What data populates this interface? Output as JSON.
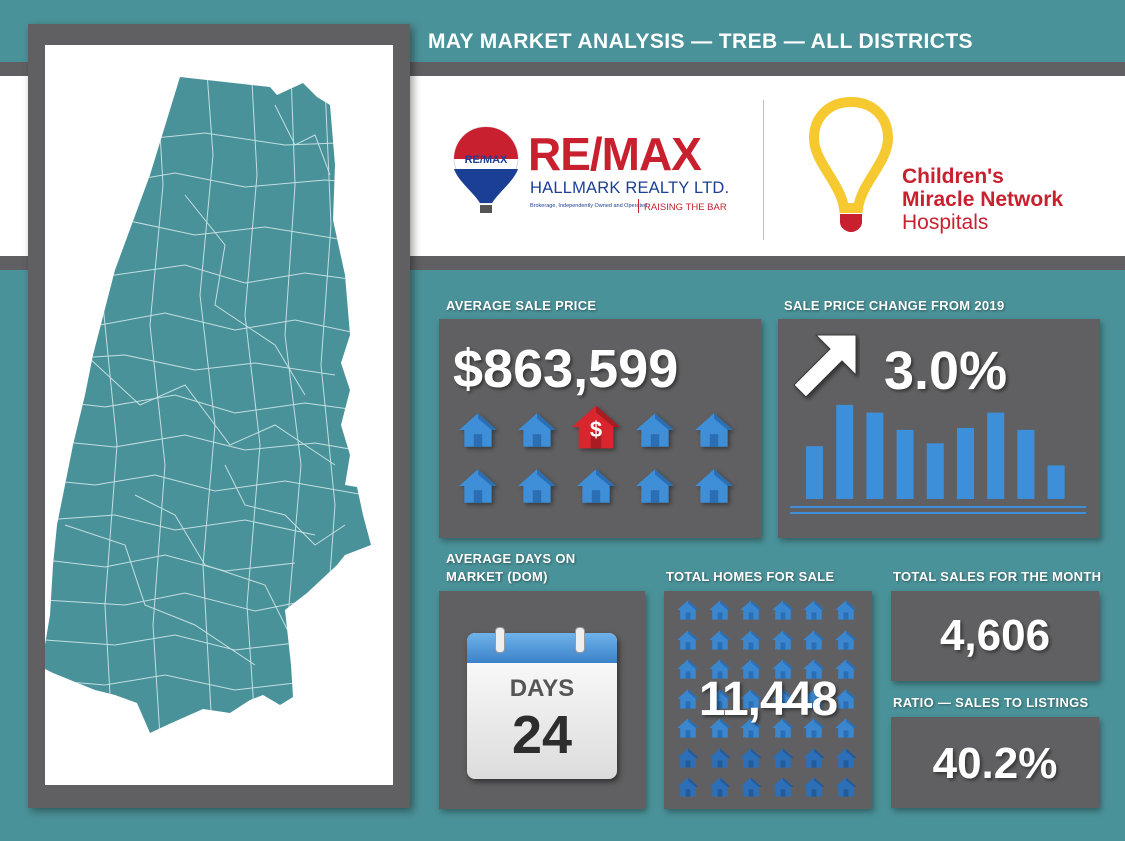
{
  "header": {
    "title": "MAY MARKET ANALYSIS — TREB — ALL DISTRICTS"
  },
  "remax": {
    "wordmark": "RE/MAX",
    "company": "HALLMARK REALTY LTD.",
    "fine_print": "Brokerage, Independently Owned and Operated",
    "tagline": "RAISING THE BAR",
    "balloon_text": "RE/MAX"
  },
  "cmn": {
    "line1": "Children's",
    "line2": "Miracle Network",
    "line3": "Hospitals"
  },
  "avg_sale": {
    "label": "AVERAGE SALE PRICE",
    "value": "$863,599",
    "highlight_symbol": "$"
  },
  "price_change": {
    "label": "SALE PRICE CHANGE FROM 2019",
    "value": "3.0%",
    "bars": [
      0.55,
      0.98,
      0.9,
      0.72,
      0.58,
      0.74,
      0.9,
      0.72,
      0.35
    ]
  },
  "dom": {
    "label_line1": "AVERAGE DAYS ON",
    "label_line2": "MARKET (DOM)",
    "calendar_word": "DAYS",
    "value": "24"
  },
  "homes": {
    "label": "TOTAL HOMES FOR SALE",
    "value": "11,448"
  },
  "sales": {
    "label": "TOTAL SALES FOR THE MONTH",
    "value": "4,606"
  },
  "ratio": {
    "label": "RATIO — SALES TO LISTINGS",
    "value": "40.2%"
  },
  "colors": {
    "teal": "#4a9299",
    "gray": "#606062",
    "remax_red": "#c8202f",
    "remax_blue": "#1b3f94",
    "cmn_yellow": "#f5c92f",
    "bar_blue": "#3d8fd9"
  }
}
